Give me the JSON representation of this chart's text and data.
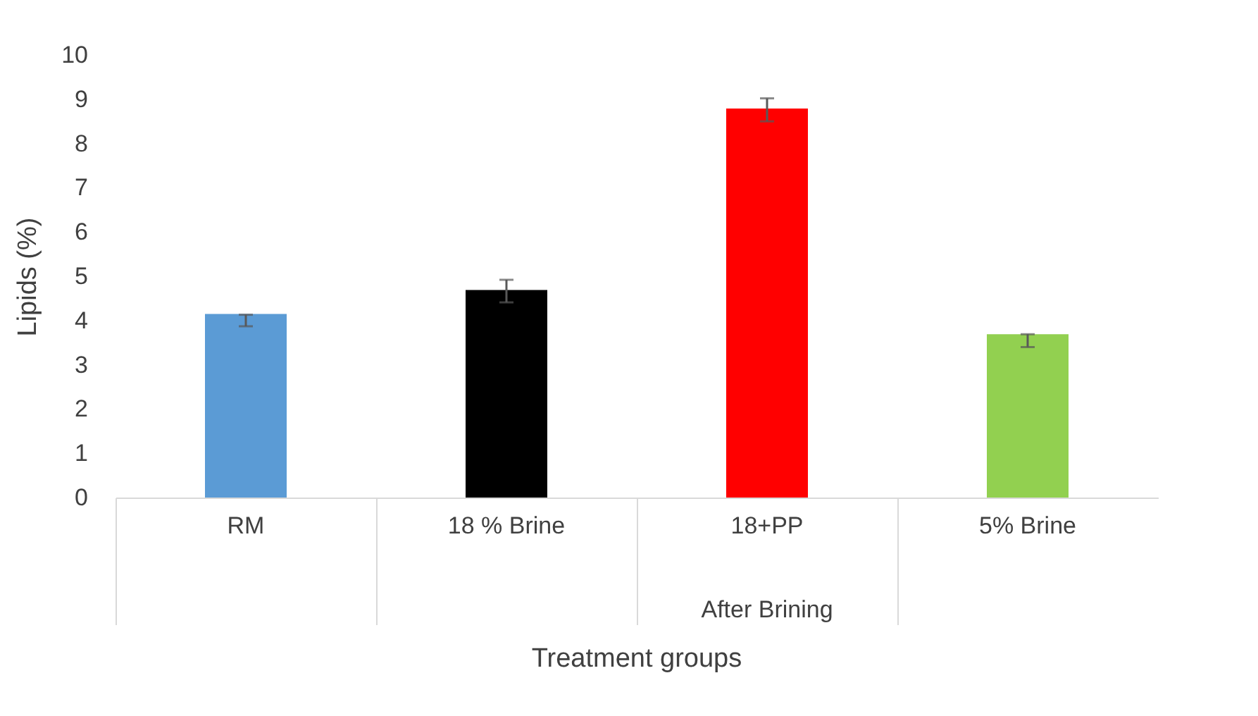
{
  "chart_data": {
    "type": "bar",
    "xlabel": "Treatment groups",
    "ylabel": "Lipids (%)",
    "categories": [
      "RM",
      "18 % Brine",
      "18+PP",
      "5% Brine"
    ],
    "values": [
      4.15,
      4.69,
      8.79,
      3.69
    ],
    "colors": [
      "#5b9bd5",
      "#000000",
      "#ff0000",
      "#92d050"
    ],
    "errors": [
      [
        3.87,
        4.13
      ],
      [
        4.41,
        4.92
      ],
      [
        8.5,
        9.02
      ],
      [
        3.4,
        3.69
      ]
    ],
    "annotations": [
      "After Brining"
    ],
    "ylim": [
      0,
      10
    ],
    "yticks": [
      0,
      1,
      2,
      3,
      4,
      5,
      6,
      7,
      8,
      9,
      10
    ],
    "grid": false
  }
}
